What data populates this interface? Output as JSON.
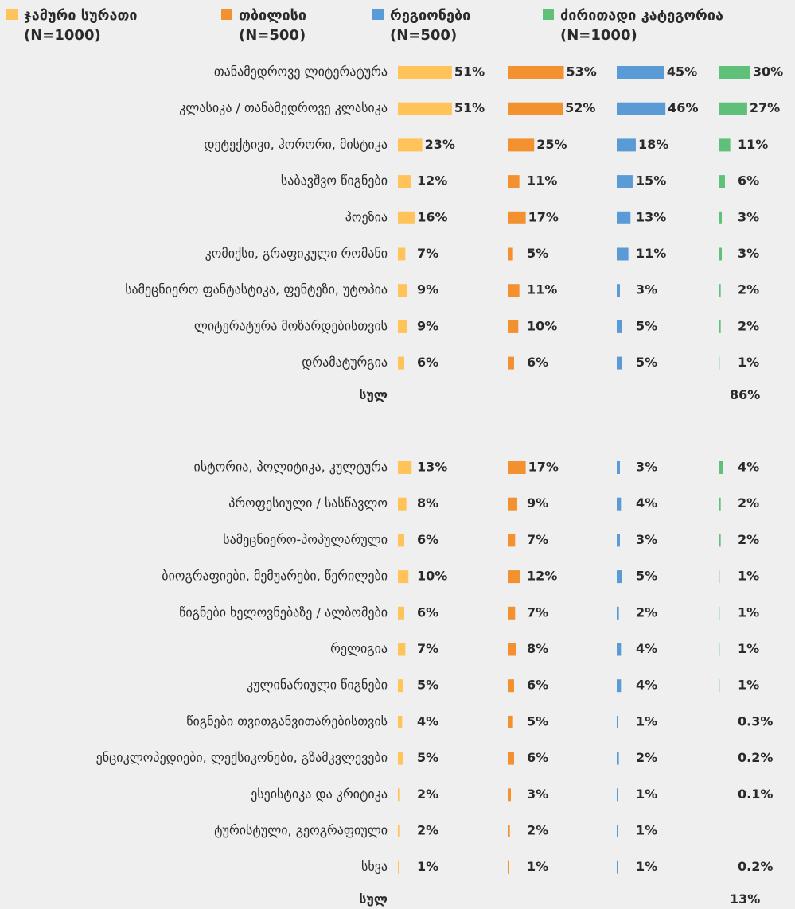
{
  "chart_data": [
    {
      "type": "bar",
      "categories": [
        "თანამედროვე ლიტერატურა",
        "კლასიკა / თანამედროვე კლასიკა",
        "დეტექტივი, ჰორორი, მისტიკა",
        "საბავშვო წიგნები",
        "პოეზია",
        "კომიქსი, გრაფიკული რომანი",
        "სამეცნიერო ფანტასტიკა, ფენტეზი, უტოპია",
        "ლიტერატურა მოზარდებისთვის",
        "დრამატურგია"
      ],
      "series": [
        {
          "name": "ჯამური სურათი",
          "sample": "(N=1000)",
          "color": "#ffc35a",
          "values": [
            51,
            51,
            23,
            12,
            16,
            7,
            9,
            9,
            6
          ],
          "value_labels": [
            "51%",
            "51%",
            "23%",
            "12%",
            "16%",
            "7%",
            "9%",
            "9%",
            "6%"
          ]
        },
        {
          "name": "თბილისი",
          "sample": "(N=500)",
          "color": "#f39130",
          "values": [
            53,
            52,
            25,
            11,
            17,
            5,
            11,
            10,
            6
          ],
          "value_labels": [
            "53%",
            "52%",
            "25%",
            "11%",
            "17%",
            "5%",
            "11%",
            "10%",
            "6%"
          ]
        },
        {
          "name": "რეგიონები",
          "sample": "(N=500)",
          "color": "#5b9bd5",
          "values": [
            45,
            46,
            18,
            15,
            13,
            11,
            3,
            5,
            5
          ],
          "value_labels": [
            "45%",
            "46%",
            "18%",
            "15%",
            "13%",
            "11%",
            "3%",
            "5%",
            "5%"
          ]
        },
        {
          "name": "ძირითადი კატეგორია",
          "sample": "(N=1000)",
          "color": "#5fc07a",
          "values": [
            30,
            27,
            11,
            6,
            3,
            3,
            2,
            2,
            1
          ],
          "value_labels": [
            "30%",
            "27%",
            "11%",
            "6%",
            "3%",
            "3%",
            "2%",
            "2%",
            "1%"
          ]
        }
      ],
      "total": {
        "label": "სულ",
        "value": 86,
        "value_label": "86%"
      }
    },
    {
      "type": "bar",
      "categories": [
        "ისტორია, პოლიტიკა, კულტურა",
        "პროფესიული / სასწავლო",
        "სამეცნიერო-პოპულარული",
        "ბიოგრაფიები, მემუარები, წერილები",
        "წიგნები ხელოვნებაზე / ალბომები",
        "რელიგია",
        "კულინარიული წიგნები",
        "წიგნები თვითგანვითარებისთვის",
        "ენციკლოპედიები, ლექსიკონები, გზამკვლევები",
        "ესეისტიკა და კრიტიკა",
        "ტურისტული, გეოგრაფიული",
        "სხვა"
      ],
      "series": [
        {
          "values": [
            13,
            8,
            6,
            10,
            6,
            7,
            5,
            4,
            5,
            2,
            2,
            1
          ],
          "value_labels": [
            "13%",
            "8%",
            "6%",
            "10%",
            "6%",
            "7%",
            "5%",
            "4%",
            "5%",
            "2%",
            "2%",
            "1%"
          ]
        },
        {
          "values": [
            17,
            9,
            7,
            12,
            7,
            8,
            6,
            5,
            6,
            3,
            2,
            1
          ],
          "value_labels": [
            "17%",
            "9%",
            "7%",
            "12%",
            "7%",
            "8%",
            "6%",
            "5%",
            "6%",
            "3%",
            "2%",
            "1%"
          ]
        },
        {
          "values": [
            3,
            4,
            3,
            5,
            2,
            4,
            4,
            1,
            2,
            1,
            1,
            1
          ],
          "value_labels": [
            "3%",
            "4%",
            "3%",
            "5%",
            "2%",
            "4%",
            "4%",
            "1%",
            "2%",
            "1%",
            "1%",
            "1%"
          ]
        },
        {
          "values": [
            4,
            2,
            2,
            1,
            1,
            1,
            1,
            0.3,
            0.2,
            0.1,
            null,
            0.2
          ],
          "value_labels": [
            "4%",
            "2%",
            "2%",
            "1%",
            "1%",
            "1%",
            "1%",
            "0.3%",
            "0.2%",
            "0.1%",
            null,
            "0.2%"
          ]
        }
      ],
      "total": {
        "label": "სულ",
        "value": 13,
        "value_label": "13%"
      }
    }
  ]
}
